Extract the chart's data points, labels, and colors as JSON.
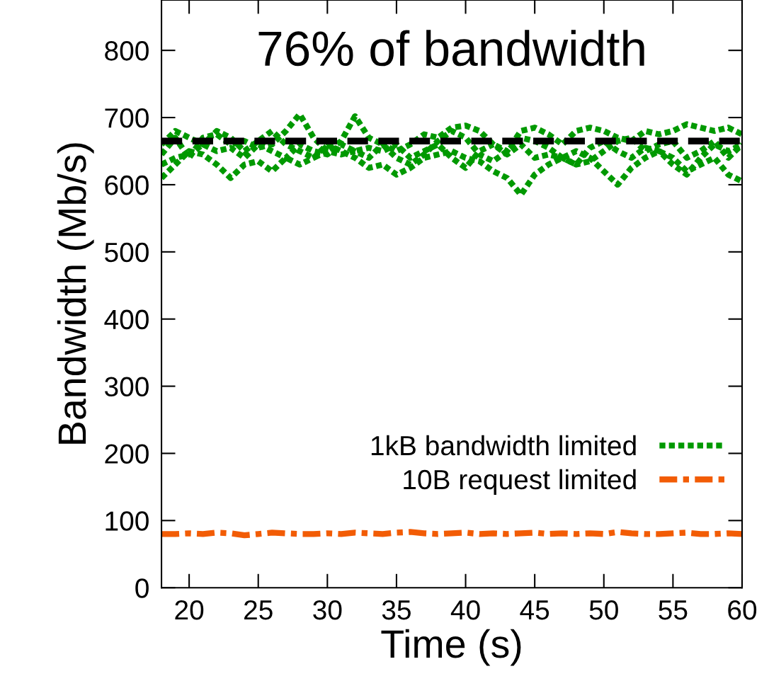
{
  "chart_data": {
    "type": "line",
    "xlabel": "Time (s)",
    "ylabel": "Bandwidth (Mb/s)",
    "annotations": [
      "76% of bandwidth"
    ],
    "x": [
      18,
      19,
      20,
      21,
      22,
      23,
      24,
      25,
      26,
      27,
      28,
      29,
      30,
      31,
      32,
      33,
      34,
      35,
      36,
      37,
      38,
      39,
      40,
      41,
      42,
      43,
      44,
      45,
      46,
      47,
      48,
      49,
      50,
      51,
      52,
      53,
      54,
      55,
      56,
      57,
      58,
      59,
      60
    ],
    "series": [
      {
        "name": "1kB bandwidth limited",
        "color": "#009900",
        "line_style": "dotted",
        "values": [
          645,
          670,
          640,
          670,
          675,
          660,
          665,
          655,
          660,
          680,
          705,
          670,
          650,
          665,
          702,
          670,
          660,
          640,
          630,
          645,
          665,
          680,
          670,
          645,
          635,
          650,
          670,
          665,
          655,
          640,
          630,
          635,
          650,
          665,
          670,
          650,
          660,
          665,
          640,
          650,
          665,
          640,
          660
        ]
      },
      {
        "color": "#009900",
        "line_style": "dotted",
        "values": [
          610,
          630,
          650,
          645,
          630,
          610,
          630,
          635,
          620,
          640,
          630,
          640,
          660,
          650,
          640,
          625,
          630,
          615,
          625,
          640,
          645,
          650,
          640,
          635,
          620,
          610,
          585,
          615,
          630,
          640,
          650,
          640,
          620,
          600,
          625,
          640,
          650,
          640,
          620,
          630,
          640,
          615,
          605
        ]
      },
      {
        "color": "#009900",
        "line_style": "dotted",
        "values": [
          660,
          680,
          670,
          660,
          680,
          670,
          650,
          665,
          680,
          660,
          650,
          640,
          650,
          645,
          650,
          640,
          660,
          650,
          660,
          675,
          670,
          685,
          688,
          680,
          660,
          650,
          680,
          685,
          675,
          660,
          680,
          685,
          680,
          670,
          665,
          680,
          675,
          680,
          690,
          685,
          680,
          685,
          675
        ]
      },
      {
        "color": "#009900",
        "line_style": "dotted",
        "values": [
          630,
          640,
          645,
          660,
          650,
          655,
          640,
          660,
          650,
          640,
          660,
          650,
          645,
          660,
          650,
          655,
          650,
          660,
          640,
          650,
          660,
          640,
          625,
          650,
          660,
          645,
          660,
          640,
          645,
          640,
          630,
          655,
          665,
          650,
          640,
          655,
          650,
          630,
          615,
          640,
          660,
          650,
          660
        ]
      },
      {
        "name": "10B request limited",
        "color": "#f25c05",
        "line_style": "dashdot",
        "values": [
          80,
          80,
          81,
          80,
          82,
          81,
          78,
          80,
          82,
          81,
          80,
          80,
          81,
          80,
          82,
          81,
          80,
          82,
          83,
          81,
          80,
          81,
          82,
          80,
          81,
          80,
          81,
          82,
          80,
          81,
          80,
          81,
          80,
          83,
          81,
          80,
          80,
          81,
          82,
          80,
          80,
          81,
          80
        ]
      }
    ],
    "ref_lines": [
      {
        "axis": "y",
        "value": 665,
        "color": "#000000",
        "line_style": "dashed"
      }
    ],
    "xlim": [
      18,
      60
    ],
    "xticks": [
      20,
      25,
      30,
      35,
      40,
      45,
      50,
      55,
      60
    ],
    "ylim": [
      0,
      875
    ],
    "yticks": [
      0,
      100,
      200,
      300,
      400,
      500,
      600,
      700,
      800
    ],
    "grid": false,
    "legend": "bottom right"
  }
}
